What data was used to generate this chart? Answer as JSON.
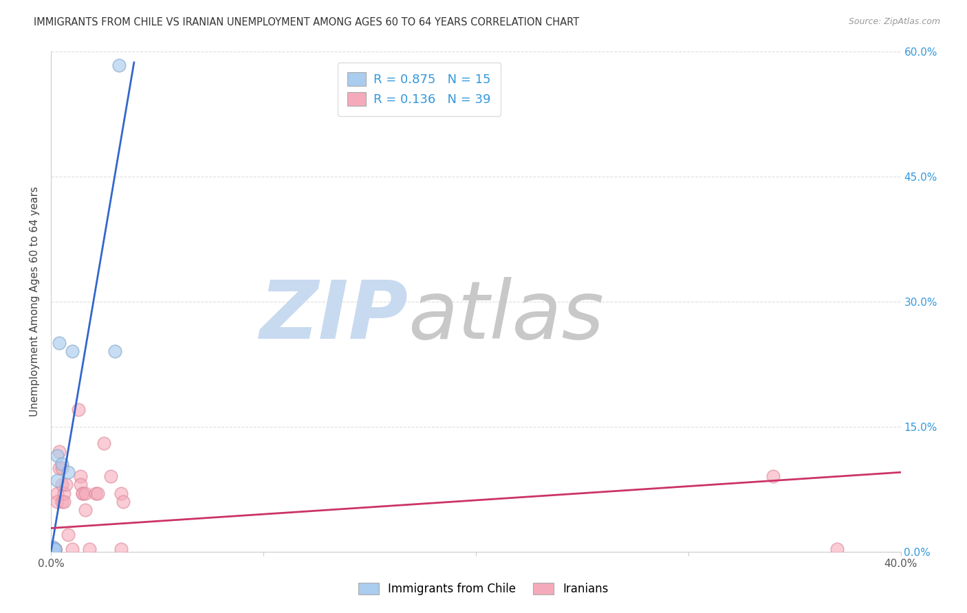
{
  "title": "IMMIGRANTS FROM CHILE VS IRANIAN UNEMPLOYMENT AMONG AGES 60 TO 64 YEARS CORRELATION CHART",
  "source": "Source: ZipAtlas.com",
  "ylabel": "Unemployment Among Ages 60 to 64 years",
  "xlim": [
    0.0,
    0.4
  ],
  "ylim": [
    0.0,
    0.6
  ],
  "xtick_positions": [
    0.0,
    0.1,
    0.2,
    0.3,
    0.4
  ],
  "xtick_labels": [
    "0.0%",
    "",
    "",
    "",
    "40.0%"
  ],
  "ytick_positions": [
    0.0,
    0.15,
    0.3,
    0.45,
    0.6
  ],
  "ytick_labels_right": [
    "0.0%",
    "15.0%",
    "30.0%",
    "45.0%",
    "60.0%"
  ],
  "watermark_zip": "ZIP",
  "watermark_atlas": "atlas",
  "watermark_color_zip": "#c8daf0",
  "watermark_color_atlas": "#c8c8c8",
  "chile_face_color": "#aaccee",
  "chile_edge_color": "#88aacc",
  "iran_face_color": "#f5aabb",
  "iran_edge_color": "#dd8899",
  "chile_line_color": "#3366cc",
  "iran_line_color": "#cc3366",
  "background_color": "#ffffff",
  "grid_color": "#dddddd",
  "chile_points_x": [
    0.001,
    0.001,
    0.001,
    0.001,
    0.001,
    0.002,
    0.002,
    0.003,
    0.003,
    0.004,
    0.005,
    0.008,
    0.01,
    0.03,
    0.032
  ],
  "chile_points_y": [
    0.002,
    0.003,
    0.003,
    0.004,
    0.005,
    0.002,
    0.003,
    0.115,
    0.085,
    0.25,
    0.105,
    0.095,
    0.24,
    0.24,
    0.583
  ],
  "iran_points_x": [
    0.001,
    0.001,
    0.001,
    0.001,
    0.001,
    0.001,
    0.001,
    0.002,
    0.002,
    0.002,
    0.002,
    0.003,
    0.003,
    0.004,
    0.004,
    0.005,
    0.005,
    0.005,
    0.006,
    0.006,
    0.007,
    0.008,
    0.01,
    0.013,
    0.014,
    0.014,
    0.015,
    0.015,
    0.016,
    0.016,
    0.018,
    0.021,
    0.022,
    0.025,
    0.028,
    0.033,
    0.033,
    0.034,
    0.34,
    0.37
  ],
  "iran_points_y": [
    0.003,
    0.003,
    0.003,
    0.003,
    0.004,
    0.004,
    0.004,
    0.003,
    0.003,
    0.003,
    0.003,
    0.07,
    0.06,
    0.1,
    0.12,
    0.08,
    0.1,
    0.06,
    0.07,
    0.06,
    0.08,
    0.02,
    0.003,
    0.17,
    0.09,
    0.08,
    0.07,
    0.07,
    0.05,
    0.07,
    0.003,
    0.07,
    0.07,
    0.13,
    0.09,
    0.003,
    0.07,
    0.06,
    0.09,
    0.003
  ],
  "chile_line_x0": 0.0,
  "chile_line_y0": 0.0,
  "chile_line_x1": 0.04,
  "chile_line_y1": 0.6,
  "iran_line_x0": 0.0,
  "iran_line_y0": 0.028,
  "iran_line_x1": 0.4,
  "iran_line_y1": 0.095
}
